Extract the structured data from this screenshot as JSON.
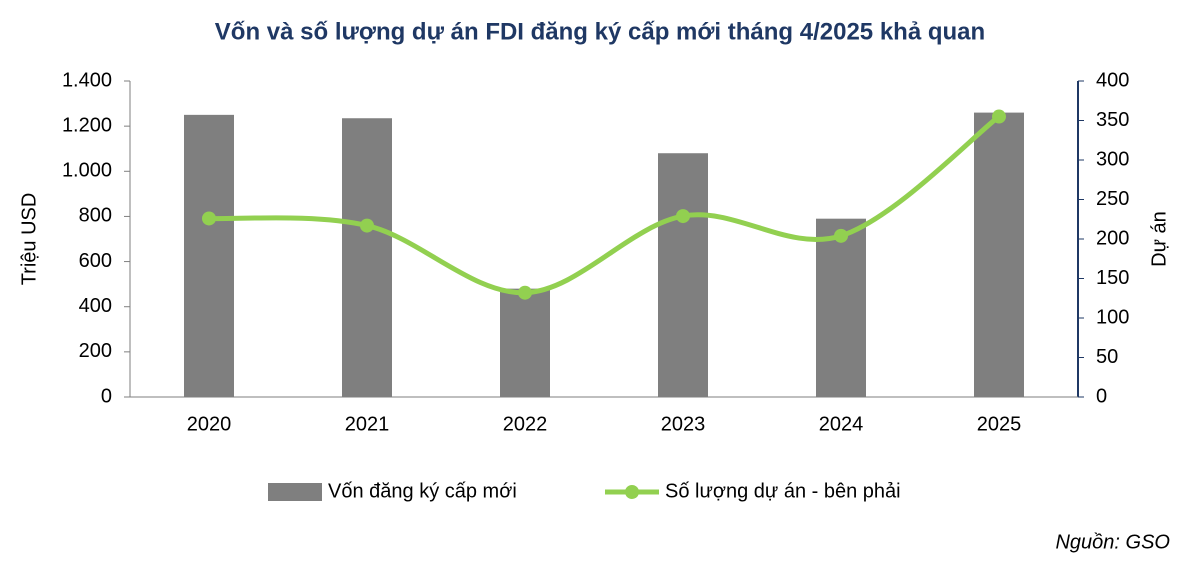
{
  "chart_data": {
    "type": "bar",
    "title": "Vốn và số lượng dự án FDI đăng ký cấp mới tháng 4/2025 khả quan",
    "y_label": "Triệu USD",
    "y2_label": "Dự án",
    "source": "Nguồn: GSO",
    "categories": [
      "2020",
      "2021",
      "2022",
      "2023",
      "2024",
      "2025"
    ],
    "series": [
      {
        "name": "Vốn đăng ký cấp mới",
        "type": "bar",
        "color": "#7f7f7f",
        "values": [
          1250,
          1235,
          480,
          1080,
          790,
          1260
        ]
      },
      {
        "name": "Số lượng dự án - bên phải",
        "type": "line",
        "color": "#92d050",
        "axis": "y2",
        "values": [
          226,
          217,
          132,
          229,
          204,
          355
        ]
      }
    ],
    "ylim": [
      0,
      1400
    ],
    "yticks": [
      0,
      200,
      400,
      600,
      {
        "value": 800,
        "label": "800"
      },
      {
        "value": 1000,
        "label": "1.000"
      },
      {
        "value": 1200,
        "label": "1.200"
      },
      {
        "value": 1400,
        "label": "1.400"
      }
    ],
    "y2lim": [
      0,
      400
    ],
    "y2ticks": [
      0,
      50,
      100,
      150,
      200,
      250,
      300,
      350,
      400
    ],
    "legend": "bottom"
  }
}
